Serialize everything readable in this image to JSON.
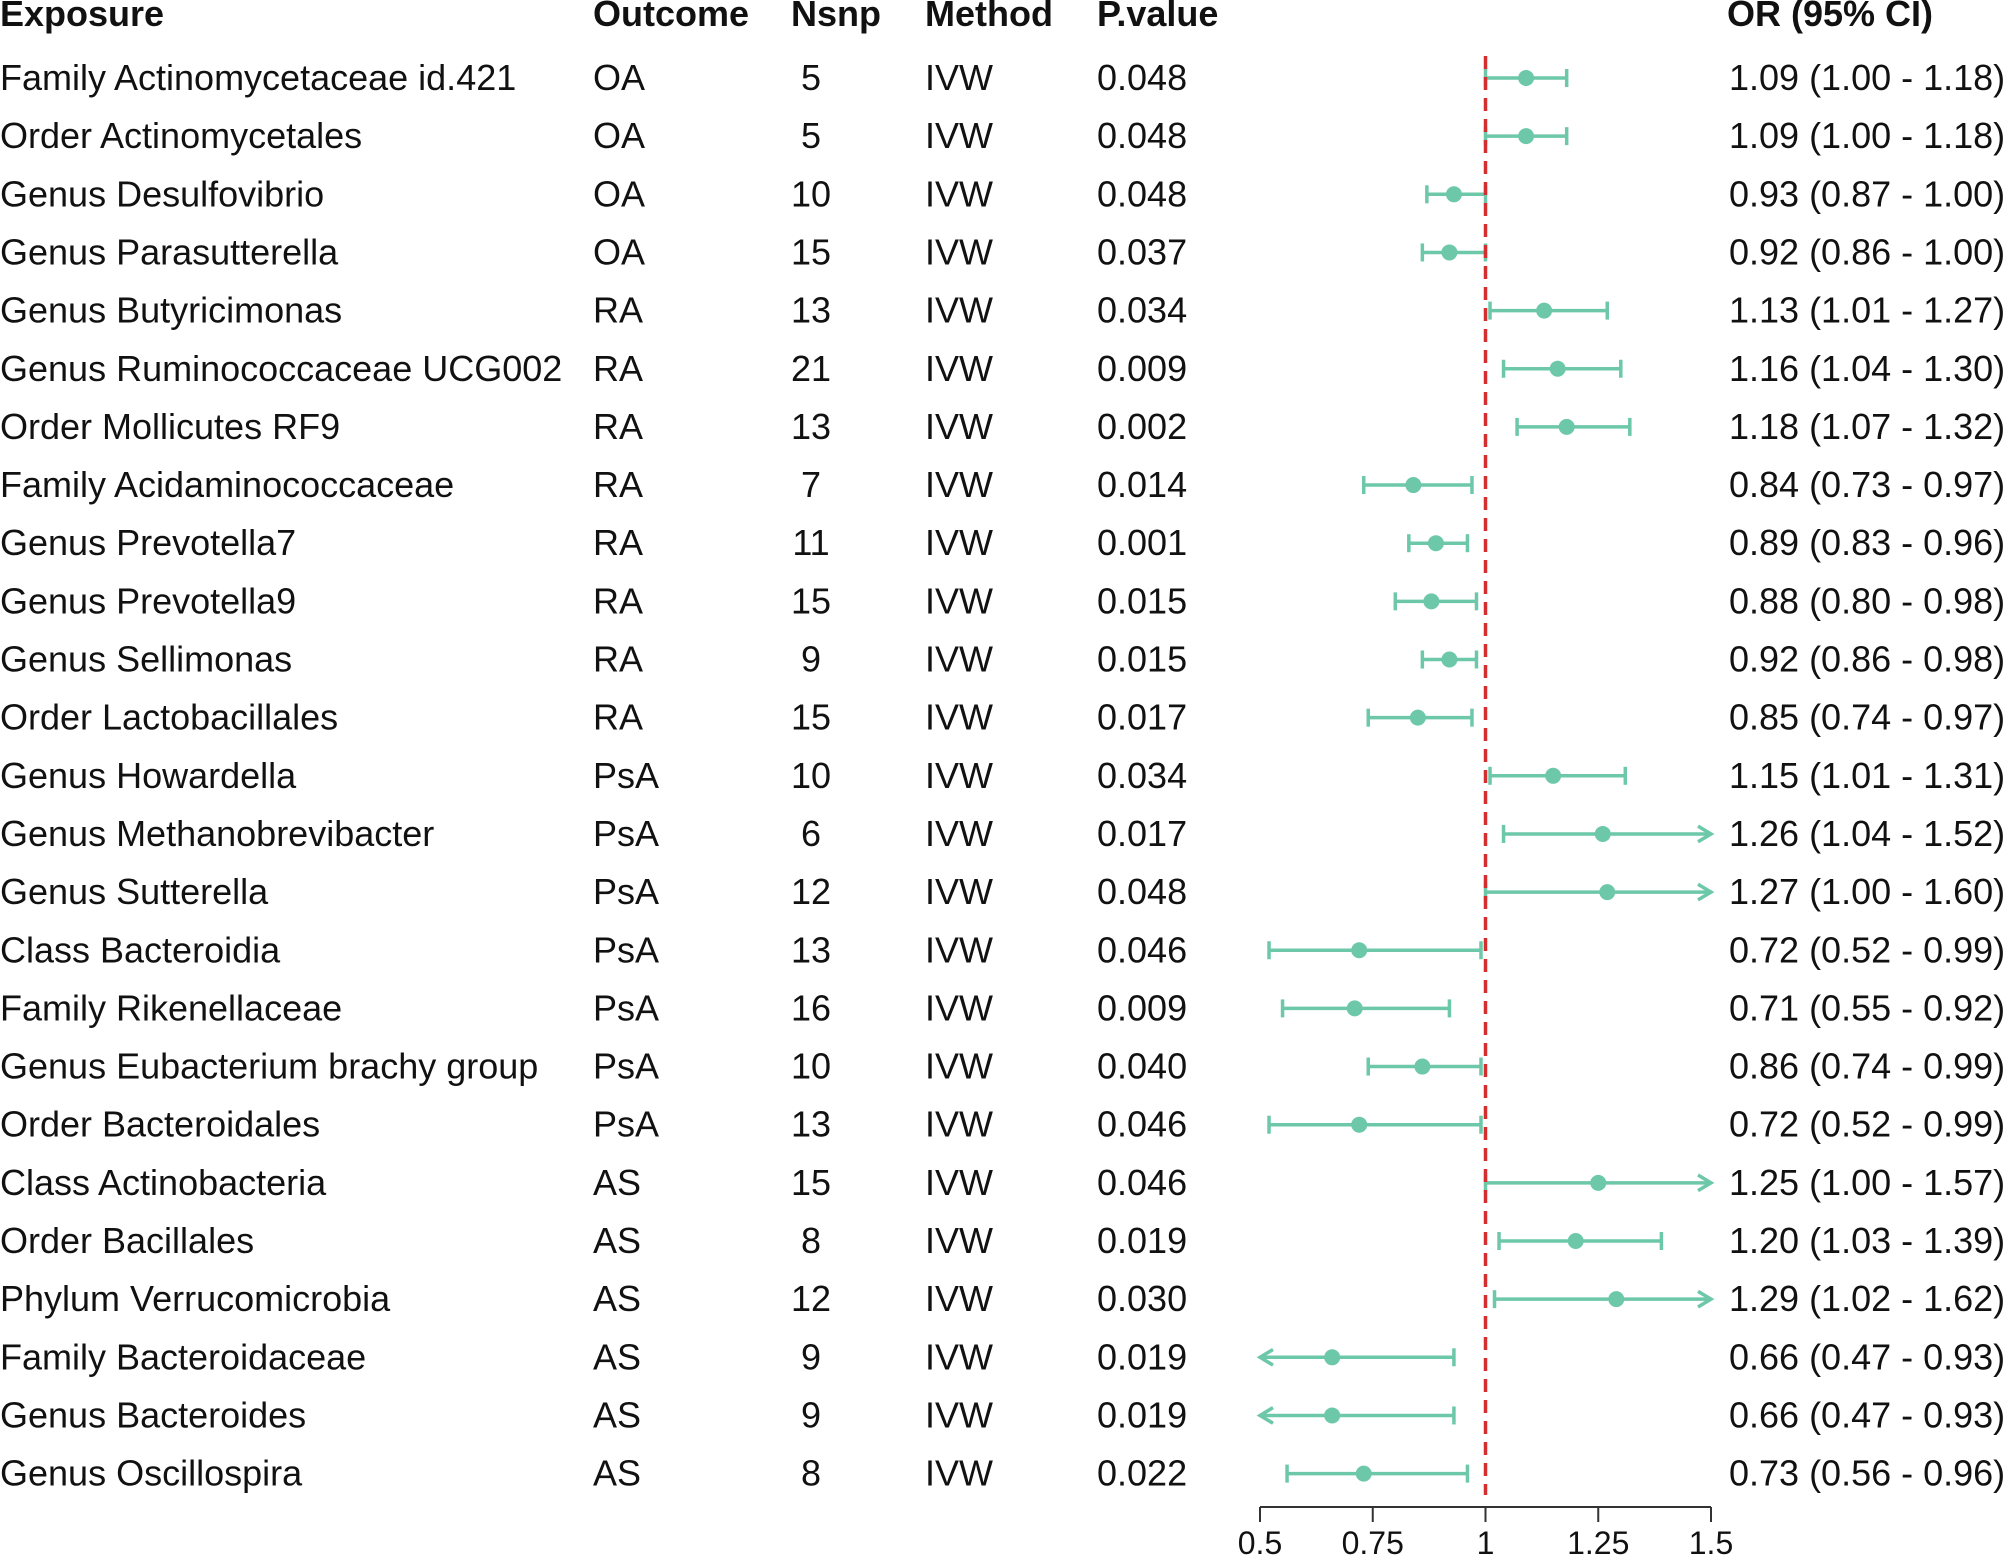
{
  "chart_data": {
    "type": "forest",
    "title": "",
    "columns": [
      "Exposure",
      "Outcome",
      "Nsnp",
      "Method",
      "P.value",
      "OR (95% CI)"
    ],
    "rows": [
      {
        "exposure": "Family Actinomycetaceae id.421",
        "outcome": "OA",
        "nsnp": "5",
        "method": "IVW",
        "p": "0.048",
        "or_text": "1.09 (1.00 - 1.18)",
        "or": 1.09,
        "lo": 1.0,
        "hi": 1.18
      },
      {
        "exposure": "Order Actinomycetales",
        "outcome": "OA",
        "nsnp": "5",
        "method": "IVW",
        "p": "0.048",
        "or_text": "1.09 (1.00 - 1.18)",
        "or": 1.09,
        "lo": 1.0,
        "hi": 1.18
      },
      {
        "exposure": "Genus Desulfovibrio",
        "outcome": "OA",
        "nsnp": "10",
        "method": "IVW",
        "p": "0.048",
        "or_text": "0.93 (0.87 - 1.00)",
        "or": 0.93,
        "lo": 0.87,
        "hi": 1.0
      },
      {
        "exposure": "Genus Parasutterella",
        "outcome": "OA",
        "nsnp": "15",
        "method": "IVW",
        "p": "0.037",
        "or_text": "0.92 (0.86 - 1.00)",
        "or": 0.92,
        "lo": 0.86,
        "hi": 1.0
      },
      {
        "exposure": "Genus Butyricimonas",
        "outcome": "RA",
        "nsnp": "13",
        "method": "IVW",
        "p": "0.034",
        "or_text": "1.13 (1.01 - 1.27)",
        "or": 1.13,
        "lo": 1.01,
        "hi": 1.27
      },
      {
        "exposure": "Genus Ruminococcaceae UCG002",
        "outcome": "RA",
        "nsnp": "21",
        "method": "IVW",
        "p": "0.009",
        "or_text": "1.16 (1.04 - 1.30)",
        "or": 1.16,
        "lo": 1.04,
        "hi": 1.3
      },
      {
        "exposure": "Order Mollicutes RF9",
        "outcome": "RA",
        "nsnp": "13",
        "method": "IVW",
        "p": "0.002",
        "or_text": "1.18 (1.07 - 1.32)",
        "or": 1.18,
        "lo": 1.07,
        "hi": 1.32
      },
      {
        "exposure": "Family Acidaminococcaceae",
        "outcome": "RA",
        "nsnp": "7",
        "method": "IVW",
        "p": "0.014",
        "or_text": "0.84 (0.73 - 0.97)",
        "or": 0.84,
        "lo": 0.73,
        "hi": 0.97
      },
      {
        "exposure": "Genus Prevotella7",
        "outcome": "RA",
        "nsnp": "11",
        "method": "IVW",
        "p": "0.001",
        "or_text": "0.89 (0.83 - 0.96)",
        "or": 0.89,
        "lo": 0.83,
        "hi": 0.96
      },
      {
        "exposure": "Genus Prevotella9",
        "outcome": "RA",
        "nsnp": "15",
        "method": "IVW",
        "p": "0.015",
        "or_text": "0.88 (0.80 - 0.98)",
        "or": 0.88,
        "lo": 0.8,
        "hi": 0.98
      },
      {
        "exposure": "Genus Sellimonas",
        "outcome": "RA",
        "nsnp": "9",
        "method": "IVW",
        "p": "0.015",
        "or_text": "0.92 (0.86 - 0.98)",
        "or": 0.92,
        "lo": 0.86,
        "hi": 0.98
      },
      {
        "exposure": "Order Lactobacillales",
        "outcome": "RA",
        "nsnp": "15",
        "method": "IVW",
        "p": "0.017",
        "or_text": "0.85 (0.74 - 0.97)",
        "or": 0.85,
        "lo": 0.74,
        "hi": 0.97
      },
      {
        "exposure": "Genus Howardella",
        "outcome": "PsA",
        "nsnp": "10",
        "method": "IVW",
        "p": "0.034",
        "or_text": "1.15 (1.01 - 1.31)",
        "or": 1.15,
        "lo": 1.01,
        "hi": 1.31
      },
      {
        "exposure": "Genus Methanobrevibacter",
        "outcome": "PsA",
        "nsnp": "6",
        "method": "IVW",
        "p": "0.017",
        "or_text": "1.26 (1.04 - 1.52)",
        "or": 1.26,
        "lo": 1.04,
        "hi": 1.52
      },
      {
        "exposure": "Genus Sutterella",
        "outcome": "PsA",
        "nsnp": "12",
        "method": "IVW",
        "p": "0.048",
        "or_text": "1.27 (1.00 - 1.60)",
        "or": 1.27,
        "lo": 1.0,
        "hi": 1.6
      },
      {
        "exposure": "Class Bacteroidia",
        "outcome": "PsA",
        "nsnp": "13",
        "method": "IVW",
        "p": "0.046",
        "or_text": "0.72 (0.52 - 0.99)",
        "or": 0.72,
        "lo": 0.52,
        "hi": 0.99
      },
      {
        "exposure": "Family Rikenellaceae",
        "outcome": "PsA",
        "nsnp": "16",
        "method": "IVW",
        "p": "0.009",
        "or_text": "0.71 (0.55 - 0.92)",
        "or": 0.71,
        "lo": 0.55,
        "hi": 0.92
      },
      {
        "exposure": "Genus Eubacterium brachy group",
        "outcome": "PsA",
        "nsnp": "10",
        "method": "IVW",
        "p": "0.040",
        "or_text": "0.86 (0.74 - 0.99)",
        "or": 0.86,
        "lo": 0.74,
        "hi": 0.99
      },
      {
        "exposure": "Order Bacteroidales",
        "outcome": "PsA",
        "nsnp": "13",
        "method": "IVW",
        "p": "0.046",
        "or_text": "0.72 (0.52 - 0.99)",
        "or": 0.72,
        "lo": 0.52,
        "hi": 0.99
      },
      {
        "exposure": "Class Actinobacteria",
        "outcome": "AS",
        "nsnp": "15",
        "method": "IVW",
        "p": "0.046",
        "or_text": "1.25 (1.00 - 1.57)",
        "or": 1.25,
        "lo": 1.0,
        "hi": 1.57
      },
      {
        "exposure": "Order Bacillales",
        "outcome": "AS",
        "nsnp": "8",
        "method": "IVW",
        "p": "0.019",
        "or_text": "1.20 (1.03 - 1.39)",
        "or": 1.2,
        "lo": 1.03,
        "hi": 1.39
      },
      {
        "exposure": "Phylum Verrucomicrobia",
        "outcome": "AS",
        "nsnp": "12",
        "method": "IVW",
        "p": "0.030",
        "or_text": "1.29 (1.02 - 1.62)",
        "or": 1.29,
        "lo": 1.02,
        "hi": 1.62
      },
      {
        "exposure": "Family Bacteroidaceae",
        "outcome": "AS",
        "nsnp": "9",
        "method": "IVW",
        "p": "0.019",
        "or_text": "0.66 (0.47 - 0.93)",
        "or": 0.66,
        "lo": 0.47,
        "hi": 0.93
      },
      {
        "exposure": "Genus Bacteroides",
        "outcome": "AS",
        "nsnp": "9",
        "method": "IVW",
        "p": "0.019",
        "or_text": "0.66 (0.47 - 0.93)",
        "or": 0.66,
        "lo": 0.47,
        "hi": 0.93
      },
      {
        "exposure": "Genus Oscillospira",
        "outcome": "AS",
        "nsnp": "8",
        "method": "IVW",
        "p": "0.022",
        "or_text": "0.73 (0.56 - 0.96)",
        "or": 0.73,
        "lo": 0.56,
        "hi": 0.96
      }
    ],
    "x_axis": {
      "label": "",
      "range": [
        0.5,
        1.5
      ],
      "ticks": [
        0.5,
        0.75,
        1,
        1.25,
        1.5
      ],
      "tick_labels": [
        "0.5",
        "0.75",
        "1",
        "1.25",
        "1.5"
      ]
    },
    "reference_line": 1,
    "grid": false
  },
  "colors": {
    "ci": "#6cc8a8",
    "reference": "#d32f2f",
    "text": "#111111",
    "axis": "#333333"
  }
}
